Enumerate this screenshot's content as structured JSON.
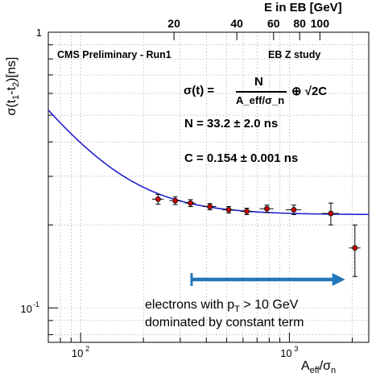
{
  "chart_data": {
    "type": "scatter",
    "x_scale": "log",
    "y_scale": "log",
    "xlim": [
      70,
      2400
    ],
    "ylim": [
      0.075,
      1.0
    ],
    "xlabel": "A_eff/σ_n",
    "ylabel": "σ(t1-t2)[ns]",
    "x_tick_labels": [
      {
        "value": 100,
        "base": "10",
        "exp": "2"
      },
      {
        "value": 1000,
        "base": "10",
        "exp": "3"
      }
    ],
    "y_tick_labels": [
      {
        "value": 1,
        "text": "1"
      },
      {
        "value": 0.1,
        "base": "10",
        "exp": "-1"
      }
    ],
    "top_axis": {
      "label": "E in EB [GeV]",
      "ticks": [
        {
          "energy": 20,
          "x": 280,
          "label": "20"
        },
        {
          "energy": 40,
          "x": 560,
          "label": "40"
        },
        {
          "energy": 60,
          "x": 840,
          "label": "60"
        },
        {
          "energy": 80,
          "x": 1120,
          "label": "80"
        },
        {
          "energy": 100,
          "x": 1400,
          "label": "100"
        }
      ]
    },
    "grid": true,
    "series": [
      {
        "kind": "points",
        "color": "#cc0000",
        "points": [
          {
            "x": 235,
            "y": 0.248,
            "xerr": 15,
            "yerr": 0.01
          },
          {
            "x": 284,
            "y": 0.245,
            "xerr": 18,
            "yerr": 0.008
          },
          {
            "x": 336,
            "y": 0.24,
            "xerr": 20,
            "yerr": 0.007
          },
          {
            "x": 416,
            "y": 0.233,
            "xerr": 30,
            "yerr": 0.006
          },
          {
            "x": 512,
            "y": 0.227,
            "xerr": 35,
            "yerr": 0.006
          },
          {
            "x": 625,
            "y": 0.224,
            "xerr": 40,
            "yerr": 0.006
          },
          {
            "x": 780,
            "y": 0.229,
            "xerr": 60,
            "yerr": 0.007
          },
          {
            "x": 1050,
            "y": 0.227,
            "xerr": 90,
            "yerr": 0.009
          },
          {
            "x": 1580,
            "y": 0.22,
            "xerr": 150,
            "yerr": 0.02
          },
          {
            "x": 2060,
            "y": 0.165,
            "xerr": 130,
            "yerr": 0.035
          }
        ]
      },
      {
        "kind": "fit",
        "color": "#2222cc",
        "N": 33.2,
        "C": 0.154
      }
    ],
    "annotations": {
      "header_left": "CMS Preliminary - Run1",
      "header_right": "EB Z study",
      "formula_lhs": "σ(t) =",
      "formula_num": "N",
      "formula_den": "A_eff/σ_n",
      "formula_rhs": "⊕ √2C",
      "n_value": "N = 33.2 ± 2.0 ns",
      "c_value": "C = 0.154 ± 0.001 ns",
      "arrow_from_x": 340,
      "arrow_to_x": 1850,
      "arrow_color": "#2277bb",
      "note_line1": "electrons with p",
      "note_line1_sub": "T",
      "note_line1_rest": "> 10 GeV",
      "note_line2": "dominated by constant term"
    }
  }
}
